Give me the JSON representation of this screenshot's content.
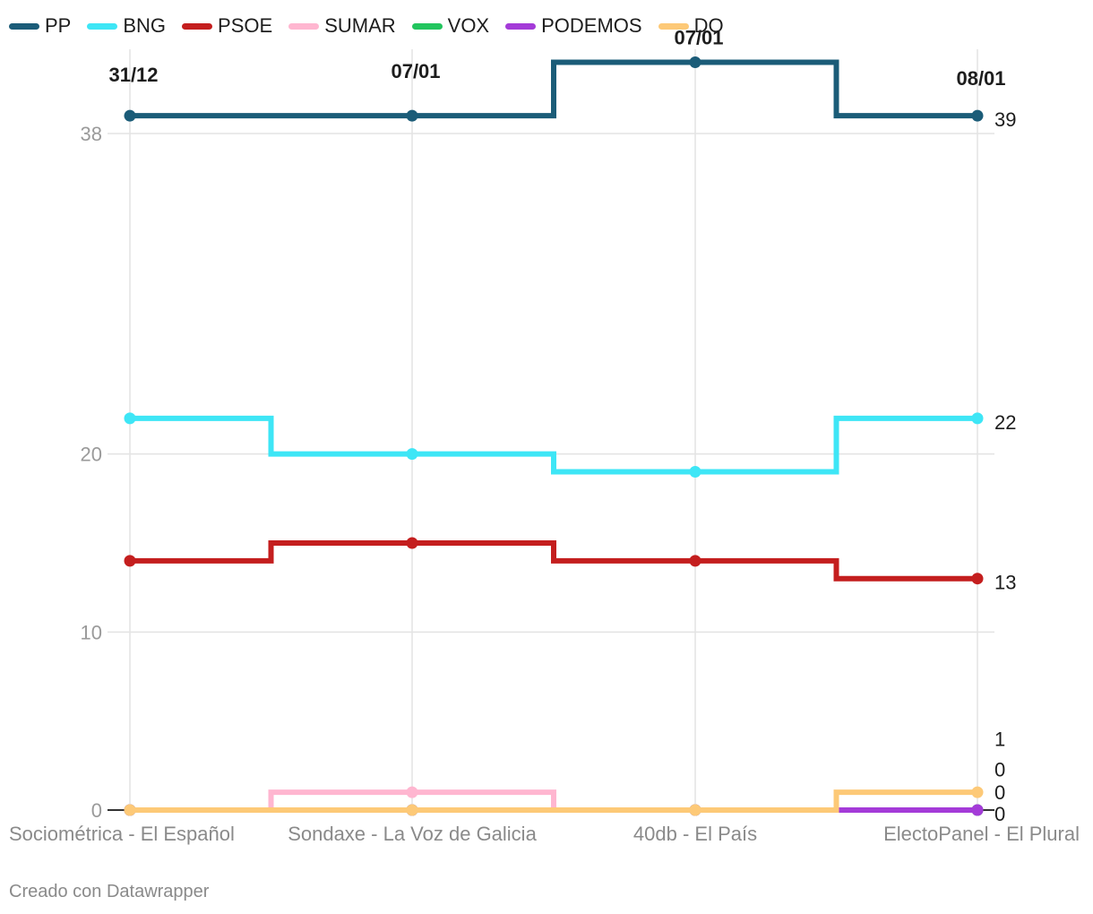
{
  "chart_data": {
    "type": "line",
    "step": true,
    "categories": [
      "Sociométrica - El Español",
      "Sondaxe - La Voz de Galicia",
      "40db - El País",
      "ElectoPanel - El Plural"
    ],
    "date_labels": [
      "31/12",
      "07/01",
      "07/01",
      "08/01"
    ],
    "y_ticks": [
      0,
      10,
      20,
      38
    ],
    "ylim": [
      0,
      41
    ],
    "series": [
      {
        "name": "PP",
        "color": "#1b5c78",
        "values": [
          39,
          39,
          42,
          39
        ]
      },
      {
        "name": "BNG",
        "color": "#3ee6f6",
        "values": [
          22,
          20,
          19,
          22
        ]
      },
      {
        "name": "PSOE",
        "color": "#c41e1e",
        "values": [
          14,
          15,
          14,
          13
        ]
      },
      {
        "name": "SUMAR",
        "color": "#ffb6d0",
        "values": [
          0,
          1,
          0,
          0
        ]
      },
      {
        "name": "VOX",
        "color": "#22c55e",
        "values": [
          0,
          0,
          0,
          0
        ]
      },
      {
        "name": "PODEMOS",
        "color": "#a43bd8",
        "values": [
          0,
          0,
          0,
          0
        ]
      },
      {
        "name": "DO",
        "color": "#fdc977",
        "values": [
          0,
          0,
          0,
          1
        ]
      }
    ],
    "end_labels": [
      "39",
      "22",
      "13",
      "1",
      "0",
      "0",
      "0"
    ]
  },
  "footer": "Creado con Datawrapper"
}
